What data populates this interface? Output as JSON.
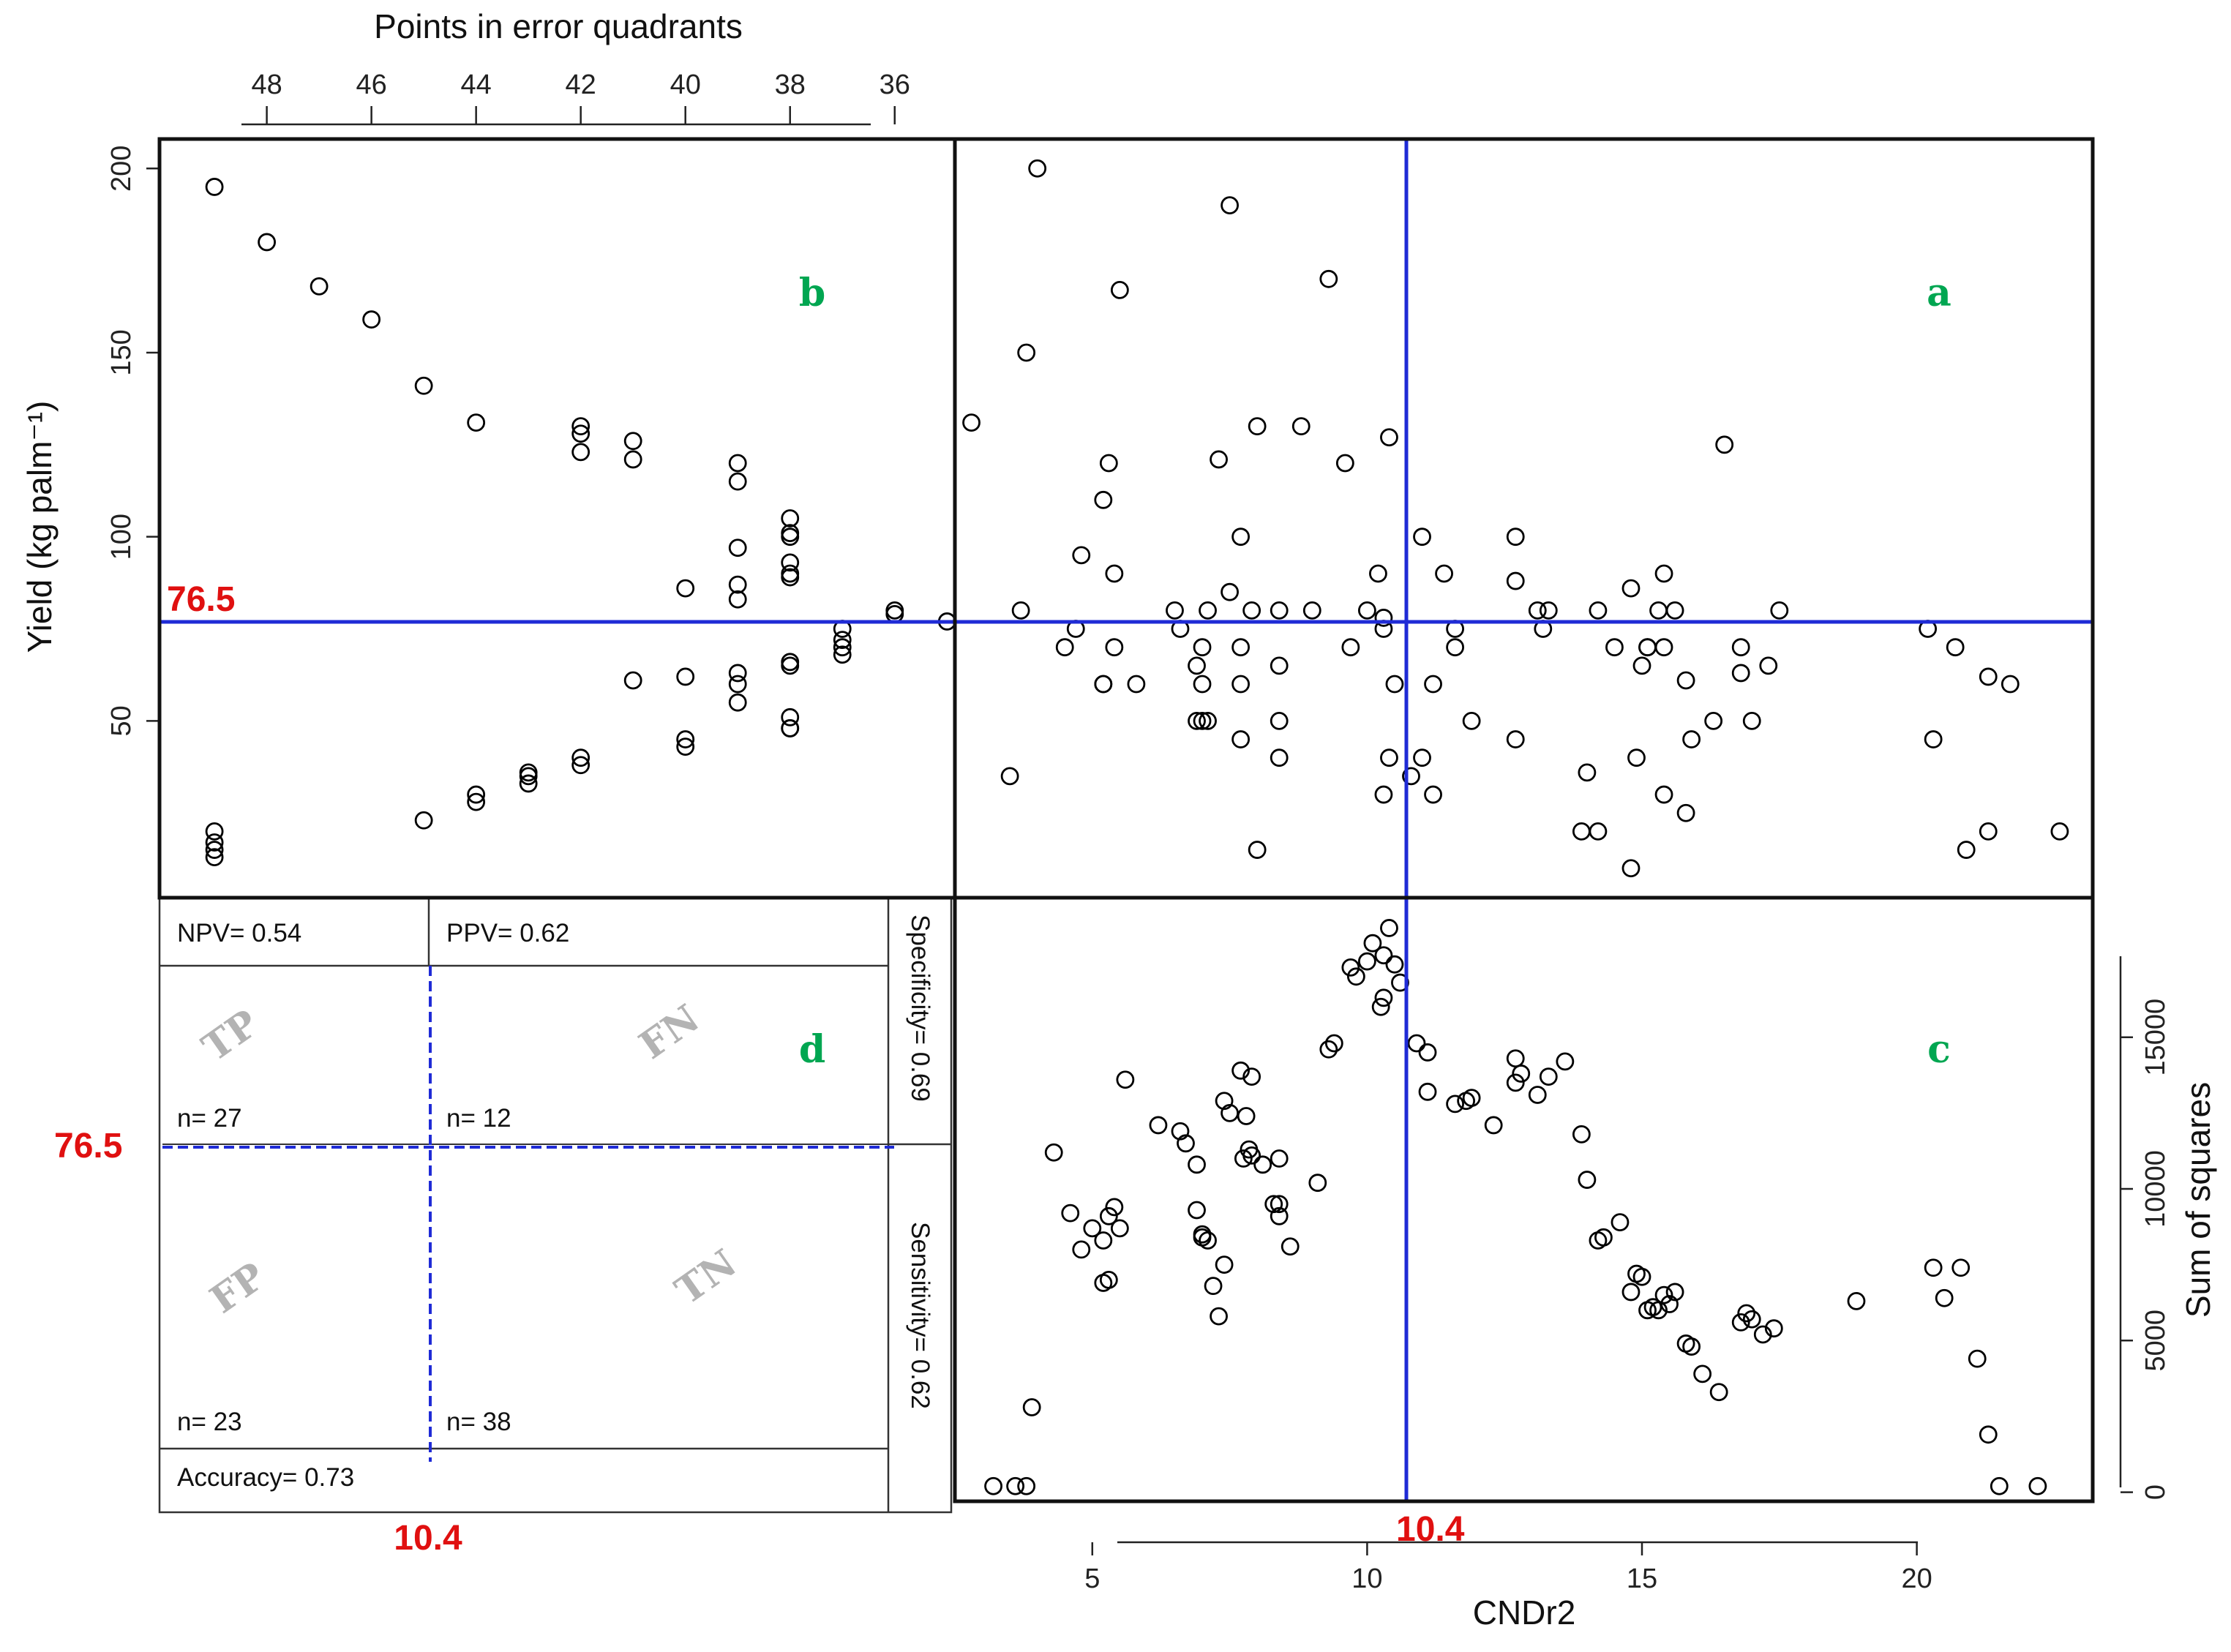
{
  "colors": {
    "threshold_line": "#1f2bd6",
    "threshold_label": "#e01010",
    "panel_letter": "#00a651",
    "quadrant_text": "#b3b3b3",
    "point_stroke": "#000000"
  },
  "threshold_labels": {
    "yield": "76.5",
    "cndr2": "10.4"
  },
  "chart_data": [
    {
      "id": "a",
      "type": "scatter",
      "panel_label": "a",
      "title": "",
      "xlabel": "CNDr2",
      "ylabel": "Yield  (kg palm⁻¹)",
      "xlim": [
        2.5,
        23.2
      ],
      "ylim": [
        2,
        208
      ],
      "hline": 76.5,
      "vline": 10.4,
      "x": [
        4.0,
        7.5,
        9.3,
        5.5,
        3.8,
        2.8,
        8.8,
        8.0,
        10.4,
        16.5,
        7.3,
        9.6,
        5.3,
        5.2,
        11.0,
        12.7,
        4.8,
        7.7,
        12.7,
        10.2,
        5.4,
        11.4,
        15.4,
        14.8,
        7.5,
        10.0,
        10.3,
        13.3,
        13.2,
        3.7,
        6.5,
        7.1,
        7.9,
        8.4,
        9.0,
        13.1,
        14.2,
        15.3,
        15.6,
        17.5,
        20.2,
        6.6,
        11.6,
        15.1,
        4.7,
        10.3,
        4.5,
        7.0,
        5.4,
        7.7,
        9.7,
        11.6,
        14.5,
        15.1,
        15.4,
        16.8,
        20.7,
        6.9,
        15.0,
        17.3,
        16.8,
        21.3,
        8.4,
        5.2,
        5.2,
        5.8,
        7.0,
        7.7,
        10.5,
        11.2,
        15.8,
        21.7,
        7.0,
        6.9,
        7.1,
        8.4,
        11.9,
        15.9,
        16.3,
        17.0,
        12.7,
        7.7,
        20.3,
        8.4,
        11.0,
        10.4,
        14.9,
        3.5,
        14.0,
        10.8,
        15.4,
        10.3,
        11.2,
        15.8,
        13.9,
        14.2,
        21.3,
        22.6,
        8.0,
        20.9,
        14.8
      ],
      "y": [
        200,
        190,
        170,
        167,
        150,
        131,
        130,
        130,
        127,
        125,
        121,
        120,
        120,
        110,
        100,
        100,
        95,
        100,
        88,
        90,
        90,
        90,
        90,
        86,
        85,
        80,
        78,
        80,
        75,
        80,
        80,
        80,
        80,
        80,
        80,
        80,
        80,
        80,
        80,
        80,
        75,
        75,
        75,
        70,
        75,
        75,
        70,
        70,
        70,
        70,
        70,
        70,
        70,
        70,
        70,
        70,
        70,
        65,
        65,
        65,
        63,
        62,
        65,
        60,
        60,
        60,
        60,
        60,
        60,
        60,
        61,
        60,
        50,
        50,
        50,
        50,
        50,
        45,
        50,
        50,
        45,
        45,
        45,
        40,
        40,
        40,
        40,
        35,
        36,
        35,
        30,
        30,
        30,
        25,
        20,
        20,
        20,
        20,
        15,
        15,
        10
      ]
    },
    {
      "id": "b",
      "type": "scatter",
      "panel_label": "b",
      "title": "Points in error quadrants",
      "xlabel": "Points in error quadrants",
      "ylabel": "Yield  (kg palm⁻¹)",
      "xticks": [
        48,
        46,
        44,
        42,
        40,
        38,
        36
      ],
      "x_reversed": true,
      "xlim": [
        50.05,
        34.85
      ],
      "ylim": [
        2,
        208
      ],
      "hline": 76.5,
      "x": [
        49,
        49,
        49,
        49,
        49,
        48,
        47,
        46,
        45,
        45,
        44,
        44,
        44,
        42,
        42,
        42,
        42,
        42,
        41,
        41,
        41,
        40,
        40,
        40,
        40,
        39,
        39,
        39,
        39,
        39,
        39,
        39,
        39,
        38,
        38,
        38,
        38,
        38,
        38,
        38,
        38,
        38,
        38,
        38,
        43,
        43,
        43,
        37,
        37,
        37,
        37,
        36,
        36,
        35
      ],
      "y": [
        195,
        20,
        17,
        15,
        13,
        180,
        168,
        159,
        141,
        23,
        131,
        30,
        28,
        130,
        128,
        123,
        40,
        38,
        126,
        121,
        61,
        86,
        62,
        45,
        43,
        120,
        115,
        97,
        87,
        83,
        63,
        60,
        55,
        105,
        101,
        100,
        93,
        90,
        89,
        66,
        65,
        51,
        48,
        48,
        36,
        35,
        33,
        75,
        72,
        70,
        68,
        80,
        79,
        77
      ]
    },
    {
      "id": "c",
      "type": "scatter",
      "panel_label": "c",
      "title": "",
      "xlabel": "CNDr2",
      "ylabel": "Sum of squares",
      "xticks": [
        5,
        10,
        15,
        20
      ],
      "yticks": [
        0,
        5000,
        10000,
        15000
      ],
      "xlim": [
        2.5,
        23.2
      ],
      "ylim": [
        -300,
        19600
      ],
      "vline": 10.4,
      "x": [
        10.4,
        10.1,
        10.3,
        10.0,
        9.7,
        9.8,
        10.5,
        10.6,
        10.3,
        10.25,
        9.3,
        9.4,
        10.9,
        11.1,
        12.7,
        5.6,
        7.7,
        7.9,
        12.7,
        13.3,
        13.6,
        13.1,
        12.8,
        11.1,
        11.6,
        11.8,
        11.9,
        7.5,
        7.4,
        7.8,
        7.75,
        6.2,
        6.6,
        6.7,
        7.9,
        7.85,
        8.1,
        8.4,
        6.9,
        8.3,
        9.1,
        12.3,
        13.9,
        14.0,
        4.3,
        4.6,
        5.4,
        5.3,
        5.5,
        5.0,
        5.2,
        4.8,
        6.9,
        7.0,
        7.0,
        7.1,
        8.4,
        8.4,
        8.6,
        7.4,
        7.2,
        7.3,
        5.2,
        5.3,
        14.2,
        14.3,
        14.6,
        14.9,
        15.0,
        15.1,
        15.2,
        15.3,
        15.4,
        15.5,
        15.6,
        14.8,
        15.8,
        15.9,
        16.1,
        16.4,
        16.8,
        17.0,
        16.9,
        17.2,
        17.4,
        18.9,
        20.3,
        20.8,
        20.5,
        21.1,
        21.3,
        3.9,
        3.2,
        3.6,
        3.8,
        21.5,
        22.2
      ],
      "y": [
        18600,
        18100,
        17700,
        17500,
        17300,
        17000,
        17400,
        16800,
        16300,
        16000,
        14600,
        14800,
        14800,
        14500,
        14300,
        13600,
        13900,
        13700,
        13500,
        13700,
        14200,
        13100,
        13800,
        13200,
        12800,
        12900,
        13000,
        12500,
        12900,
        12400,
        11000,
        12100,
        11900,
        11500,
        11100,
        11300,
        10800,
        11000,
        10800,
        9500,
        10200,
        12100,
        11800,
        10300,
        11200,
        9200,
        9400,
        9100,
        8700,
        8700,
        8300,
        8000,
        9300,
        8500,
        8400,
        8300,
        9100,
        9500,
        8100,
        7500,
        6800,
        5800,
        6900,
        7000,
        8300,
        8400,
        8900,
        7200,
        7100,
        6000,
        6100,
        6000,
        6500,
        6200,
        6600,
        6600,
        4900,
        4800,
        3900,
        3300,
        5600,
        5700,
        5900,
        5200,
        5400,
        6300,
        7400,
        7400,
        6400,
        4400,
        1900,
        2800,
        200,
        200,
        200,
        200,
        200
      ]
    },
    {
      "id": "d",
      "type": "table",
      "panel_label": "d",
      "npv": "NPV= 0.54",
      "ppv": "PPV= 0.62",
      "specificity": "Specificity= 0.69",
      "sensitivity": "Sensitivity= 0.62",
      "accuracy": "Accuracy= 0.73",
      "quadrants": [
        {
          "label": "TP",
          "count": "n= 27"
        },
        {
          "label": "FN",
          "count": "n= 12"
        },
        {
          "label": "FP",
          "count": "n= 23"
        },
        {
          "label": "TN",
          "count": "n= 38"
        }
      ]
    }
  ]
}
